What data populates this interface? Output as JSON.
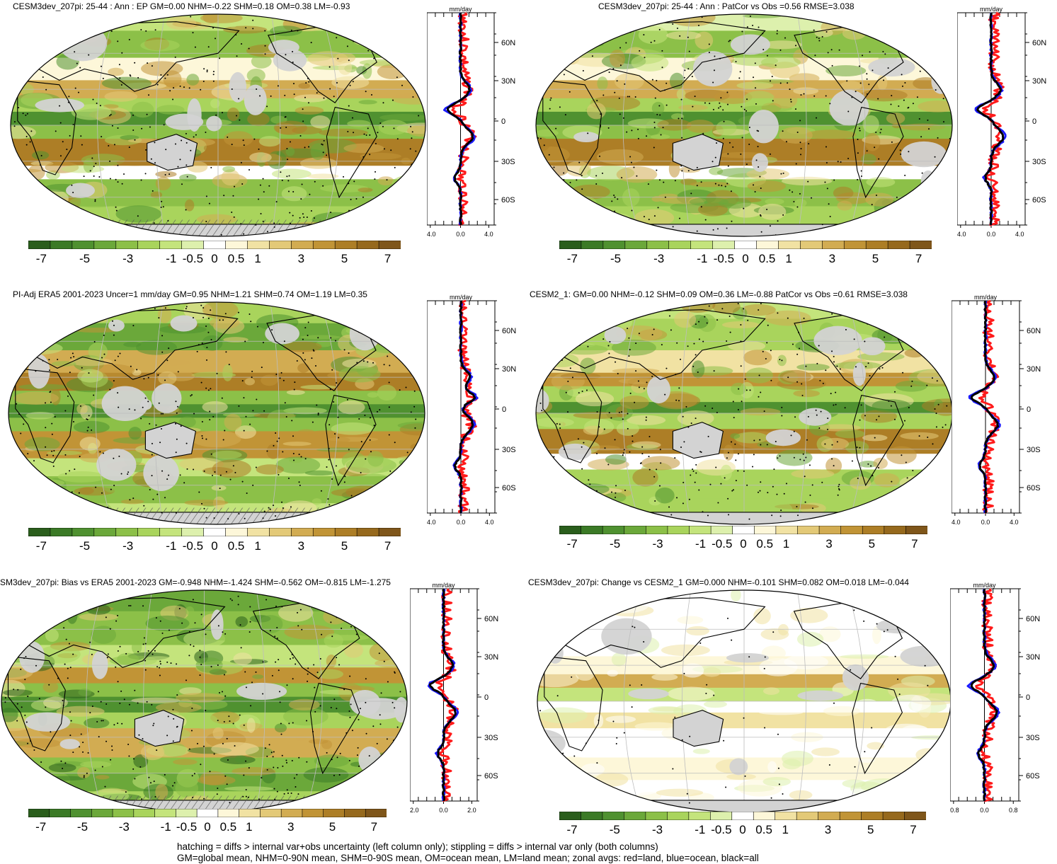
{
  "colors": {
    "colorbar": [
      "#2a5e1c",
      "#3b7a26",
      "#4f9130",
      "#6ba83a",
      "#8cc048",
      "#a9d45c",
      "#c4e47c",
      "#ddf0ad",
      "#ffffff",
      "#fdf7d9",
      "#f1e2a3",
      "#e3c977",
      "#d2ac52",
      "#c19436",
      "#ad7e26",
      "#96691d",
      "#7f561a"
    ],
    "land_mask": "#d3d3d3",
    "zonal_land": "#ff1a1a",
    "zonal_ocean": "#1a1aff",
    "zonal_all": "#000000"
  },
  "colorbar_labels": [
    "-7",
    "-5",
    "-3",
    "-1",
    "-0.5",
    "0",
    "0.5",
    "1",
    "3",
    "5",
    "7"
  ],
  "zonal_unit": "mm/day",
  "lat_labels": [
    "60N",
    "30N",
    "0",
    "30S",
    "60S"
  ],
  "panels": [
    {
      "title": "CESM3dev_207pi: 25-44 : Ann : EP GM=0.00 NHM=-0.22 SHM=0.18 OM=0.38 LM=-0.93",
      "xticks": [
        "-4.0",
        "0.0",
        "4.0"
      ]
    },
    {
      "title": "CESM3dev_207pi: 25-44 : Ann : PatCor vs Obs =0.56 RMSE=3.038",
      "xticks": [
        "-4.0",
        "0.0",
        "4.0"
      ]
    },
    {
      "title": "PI-Adj ERA5 2001-2023 Uncer=1 mm/day GM=0.95 NHM=1.21 SHM=0.74 OM=1.19 LM=0.35",
      "xticks": [
        "-4.0",
        "0.0",
        "4.0"
      ]
    },
    {
      "title": "CESM2_1: GM=0.00 NHM=-0.12 SHM=0.09 OM=0.36 LM=-0.88 PatCor vs Obs =0.61 RMSE=3.038",
      "xticks": [
        "-4.0",
        "0.0",
        "4.0"
      ]
    },
    {
      "title": "SM3dev_207pi: Bias vs ERA5 2001-2023 GM=-0.948 NHM=-1.424 SHM=-0.562 OM=-0.815 LM=-1.275",
      "xticks": [
        "-2.0",
        "0.0",
        "2.0"
      ]
    },
    {
      "title": "CESM3dev_207pi: Change vs CESM2_1 GM=0.000 NHM=-0.101 SHM=0.082 OM=0.018 LM=-0.044",
      "xticks": [
        "-0.8",
        "0.0",
        "0.8"
      ]
    }
  ],
  "footer": {
    "line1": "hatching = diffs > internal var+obs uncertainty (left column only); stippling = diffs > internal var only (both columns)",
    "line2": "GM=global mean, NHM=0-90N mean, SHM=0-90S mean, OM=ocean mean, LM=land mean; zonal avgs: red=land, blue=ocean, black=all"
  }
}
